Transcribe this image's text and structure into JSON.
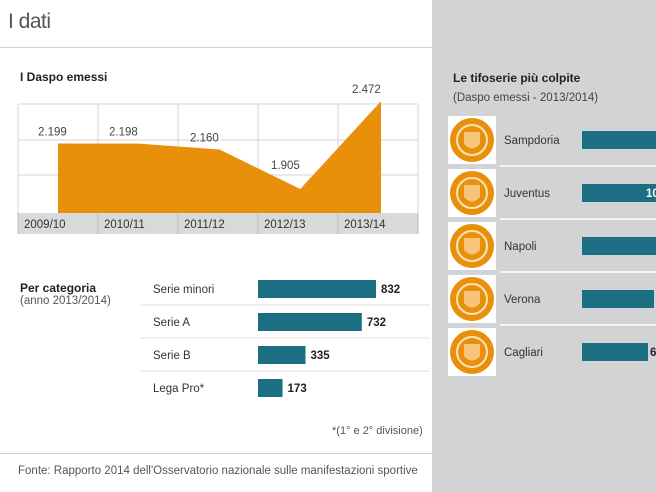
{
  "page": {
    "title": "I dati"
  },
  "colors": {
    "area": "#e8900a",
    "bar": "#1c6f83",
    "panel": "#d1d3d5",
    "axis_band": "#d8d9db"
  },
  "area_chart": {
    "title": "I Daspo emessi"
  },
  "categories_block": {
    "title": "Per categoria",
    "subtitle": "(anno 2013/2014)",
    "footnote": "*(1° e 2° divisione)"
  },
  "right_block": {
    "title": "Le tifoserie più colpite",
    "subtitle": "(Daspo emessi - 2013/2014)",
    "crest_icons": [
      "sampdoria-crest-icon",
      "juventus-crest-icon",
      "napoli-crest-icon",
      "verona-crest-icon",
      "cagliari-crest-icon"
    ]
  },
  "footer": {
    "source": "Fonte: Rapporto 2014 dell'Osservatorio nazionale sulle manifestazioni sportive"
  },
  "chart_data": [
    {
      "type": "area",
      "title": "I Daspo emessi",
      "categories": [
        "2009/10",
        "2010/11",
        "2011/12",
        "2012/13",
        "2013/14"
      ],
      "values": [
        2199,
        2198,
        2160,
        1905,
        2472
      ],
      "value_labels": [
        "2.199",
        "2.198",
        "2.160",
        "1.905",
        "2.472"
      ],
      "ylim": [
        1750,
        2480
      ],
      "grid": true
    },
    {
      "type": "bar",
      "orientation": "horizontal",
      "categories": [
        "Serie minori",
        "Serie A",
        "Serie B",
        "Lega Pro*"
      ],
      "values": [
        832,
        732,
        335,
        173
      ],
      "value_labels": [
        "832",
        "732",
        "335",
        "173"
      ],
      "xlim": [
        0,
        832
      ]
    },
    {
      "type": "bar",
      "orientation": "horizontal",
      "categories": [
        "Sampdoria",
        "Juventus",
        "Napoli",
        "Verona",
        "Cagliari"
      ],
      "values": [
        null,
        null,
        null,
        null,
        null
      ],
      "value_labels": [
        "",
        "10",
        "",
        "",
        "6"
      ],
      "note": "bars cropped at right edge of image; only partial labels visible"
    }
  ]
}
